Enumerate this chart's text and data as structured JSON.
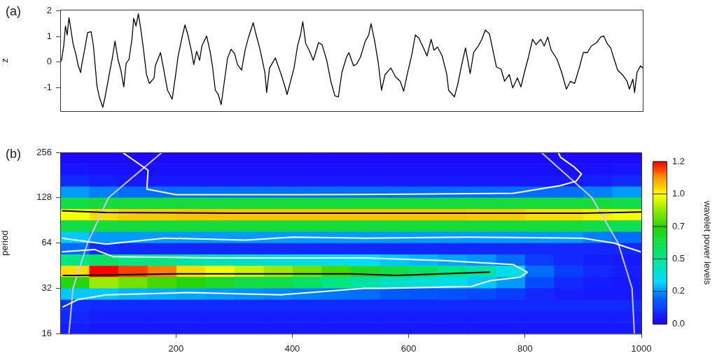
{
  "chart_data": [
    {
      "type": "line",
      "ylabel": "z",
      "annotations": [
        "(a)"
      ],
      "color": "#000000",
      "tick_labels": "y",
      "xlim": [
        1,
        1000
      ],
      "ylim": [
        -1.92,
        2.05
      ],
      "yticks": [
        -1,
        0,
        1,
        2
      ],
      "x": [
        3,
        7,
        10,
        13,
        16,
        19,
        23,
        28,
        32,
        36,
        38,
        43,
        48,
        54,
        58,
        64,
        68,
        74,
        78,
        85,
        90,
        95,
        100,
        105,
        110,
        114,
        119,
        124,
        127,
        131,
        135,
        139,
        144,
        149,
        154,
        162,
        164,
        173,
        178,
        185,
        193,
        199,
        203,
        210,
        215,
        220,
        226,
        230,
        235,
        240,
        244,
        252,
        258,
        262,
        267,
        272,
        277,
        282,
        288,
        294,
        300,
        305,
        312,
        318,
        324,
        332,
        336,
        344,
        352,
        355,
        360,
        370,
        380,
        386,
        390,
        395,
        402,
        408,
        413,
        417,
        422,
        428,
        435,
        444,
        450,
        458,
        465,
        472,
        478,
        484,
        492,
        496,
        504,
        510,
        516,
        524,
        530,
        534,
        540,
        546,
        552,
        558,
        568,
        576,
        584,
        590,
        596,
        604,
        610,
        616,
        624,
        630,
        637,
        642,
        648,
        656,
        664,
        667,
        677,
        683,
        689,
        696,
        704,
        710,
        718,
        724,
        730,
        737,
        743,
        749,
        757,
        763,
        771,
        777,
        785,
        791,
        797,
        804,
        811,
        817,
        825,
        831,
        837,
        843,
        853,
        861,
        869,
        876,
        883,
        891,
        898,
        905,
        912,
        921,
        928,
        933,
        939,
        945,
        951,
        957,
        965,
        973,
        977,
        983,
        986,
        990,
        996,
        1000
      ],
      "values": [
        0.03,
        0.63,
        1.41,
        1.06,
        1.74,
        1.32,
        0.72,
        0.29,
        -0.15,
        -0.41,
        -0.1,
        0.5,
        1.15,
        1.19,
        0.63,
        -0.93,
        -1.36,
        -1.77,
        -1.36,
        -0.49,
        0.11,
        0.82,
        0.11,
        -0.32,
        -0.97,
        -0.06,
        0.11,
        0.89,
        1.71,
        1.41,
        1.89,
        1.32,
        0.46,
        -0.49,
        -0.84,
        -0.62,
        -0.15,
        0.37,
        -0.23,
        -1.1,
        -1.45,
        -0.49,
        0.2,
        0.98,
        1.45,
        1.06,
        0.42,
        -0.1,
        0.42,
        0.07,
        0.63,
        1.02,
        0.42,
        -0.15,
        -1.1,
        -1.27,
        -1.66,
        -0.84,
        0.16,
        0.5,
        0.33,
        -0.1,
        -0.32,
        0.46,
        0.98,
        1.54,
        1.15,
        0.46,
        -0.41,
        -1.19,
        -0.23,
        0.16,
        -0.49,
        -0.93,
        -1.27,
        -0.84,
        -0.23,
        0.63,
        1.06,
        1.58,
        0.72,
        0.46,
        0.07,
        0.76,
        0.68,
        0.07,
        -0.75,
        -1.32,
        -1.36,
        -0.41,
        0.2,
        0.37,
        -0.15,
        -0.06,
        0.2,
        0.81,
        1.06,
        1.5,
        0.85,
        0.03,
        -1.1,
        -0.49,
        -0.23,
        -0.58,
        -0.75,
        -1.14,
        -0.49,
        0.29,
        1.06,
        0.94,
        0.55,
        0.24,
        0.89,
        0.46,
        0.59,
        0.24,
        -0.49,
        -1.1,
        -1.36,
        -0.84,
        -0.15,
        0.55,
        -0.45,
        0.37,
        0.63,
        0.89,
        1.25,
        1.11,
        0.46,
        -0.19,
        -0.28,
        -0.75,
        -0.49,
        -1.01,
        -0.62,
        -0.97,
        -0.41,
        0.2,
        0.89,
        0.68,
        0.89,
        0.63,
        0.98,
        0.46,
        0.11,
        -0.41,
        -1.06,
        -0.75,
        -0.84,
        -0.23,
        0.37,
        0.37,
        0.63,
        0.76,
        0.98,
        1.02,
        0.72,
        0.55,
        0.11,
        -0.32,
        -0.49,
        -0.75,
        -1.06,
        -0.67,
        -1.19,
        -0.41,
        -0.15,
        -0.23
      ]
    },
    {
      "type": "heatmap",
      "ylabel": "period",
      "clabel": "wavelet power levels",
      "annotations": [
        "(b)"
      ],
      "log": "y",
      "xlim": [
        1,
        1000
      ],
      "xticks": [
        200,
        400,
        600,
        800,
        1000
      ],
      "ylim": [
        16,
        256
      ],
      "yticks": [
        16,
        32,
        64,
        128,
        256
      ],
      "clim": [
        0,
        1.2
      ],
      "cticks": [
        {
          "value": 0,
          "label": "0.0"
        },
        {
          "value": 0.24,
          "label": "0.2"
        },
        {
          "value": 0.48,
          "label": "0.5"
        },
        {
          "value": 0.72,
          "label": "0.7"
        },
        {
          "value": 0.96,
          "label": "1.0"
        },
        {
          "value": 1.2,
          "label": "1.2"
        }
      ],
      "cells": [
        [
          0.02,
          0.02,
          0.02,
          0.02,
          0.02,
          0.02,
          0.02,
          0.02,
          0.02,
          0.02,
          0.02,
          0.02,
          0.02,
          0.02,
          0.02,
          0.02,
          0.02,
          0.02,
          0.02,
          0.02
        ],
        [
          0.04,
          0.03,
          0.03,
          0.03,
          0.03,
          0.03,
          0.03,
          0.03,
          0.03,
          0.03,
          0.03,
          0.03,
          0.03,
          0.03,
          0.03,
          0.03,
          0.03,
          0.03,
          0.03,
          0.04
        ],
        [
          0.08,
          0.06,
          0.05,
          0.05,
          0.05,
          0.05,
          0.05,
          0.05,
          0.05,
          0.05,
          0.05,
          0.05,
          0.05,
          0.05,
          0.05,
          0.05,
          0.05,
          0.05,
          0.06,
          0.08
        ],
        [
          0.25,
          0.22,
          0.2,
          0.2,
          0.2,
          0.2,
          0.2,
          0.2,
          0.2,
          0.2,
          0.2,
          0.2,
          0.2,
          0.2,
          0.2,
          0.2,
          0.2,
          0.2,
          0.22,
          0.25
        ],
        [
          0.6,
          0.62,
          0.62,
          0.62,
          0.62,
          0.62,
          0.62,
          0.62,
          0.62,
          0.62,
          0.62,
          0.62,
          0.62,
          0.62,
          0.62,
          0.62,
          0.62,
          0.62,
          0.62,
          0.6
        ],
        [
          0.95,
          1.0,
          1.02,
          1.02,
          1.03,
          1.03,
          1.03,
          1.03,
          1.03,
          1.03,
          1.03,
          1.03,
          1.03,
          1.03,
          1.02,
          1.02,
          1.0,
          1.0,
          0.98,
          0.95
        ],
        [
          0.6,
          0.62,
          0.62,
          0.62,
          0.62,
          0.62,
          0.62,
          0.62,
          0.62,
          0.62,
          0.62,
          0.62,
          0.62,
          0.62,
          0.62,
          0.62,
          0.62,
          0.62,
          0.6,
          0.58
        ],
        [
          0.3,
          0.25,
          0.25,
          0.25,
          0.25,
          0.25,
          0.25,
          0.25,
          0.25,
          0.25,
          0.25,
          0.25,
          0.25,
          0.25,
          0.25,
          0.25,
          0.25,
          0.25,
          0.22,
          0.2
        ],
        [
          0.2,
          0.1,
          0.08,
          0.08,
          0.08,
          0.08,
          0.08,
          0.08,
          0.08,
          0.08,
          0.08,
          0.08,
          0.08,
          0.08,
          0.08,
          0.08,
          0.08,
          0.08,
          0.08,
          0.08
        ],
        [
          0.5,
          0.55,
          0.5,
          0.5,
          0.45,
          0.42,
          0.4,
          0.38,
          0.36,
          0.34,
          0.32,
          0.3,
          0.28,
          0.26,
          0.24,
          0.2,
          0.12,
          0.08,
          0.06,
          0.05
        ],
        [
          1.0,
          1.2,
          1.15,
          1.1,
          1.0,
          0.95,
          0.9,
          0.85,
          0.8,
          0.75,
          0.65,
          0.6,
          0.55,
          0.5,
          0.45,
          0.35,
          0.2,
          0.12,
          0.08,
          0.06
        ],
        [
          0.7,
          0.85,
          0.8,
          0.75,
          0.7,
          0.65,
          0.6,
          0.6,
          0.55,
          0.5,
          0.45,
          0.4,
          0.38,
          0.35,
          0.3,
          0.25,
          0.15,
          0.08,
          0.06,
          0.05
        ],
        [
          0.3,
          0.3,
          0.28,
          0.27,
          0.26,
          0.25,
          0.24,
          0.23,
          0.22,
          0.21,
          0.2,
          0.18,
          0.17,
          0.16,
          0.15,
          0.12,
          0.08,
          0.06,
          0.05,
          0.05
        ],
        [
          0.1,
          0.08,
          0.08,
          0.08,
          0.08,
          0.08,
          0.08,
          0.08,
          0.08,
          0.08,
          0.08,
          0.08,
          0.08,
          0.08,
          0.08,
          0.08,
          0.08,
          0.08,
          0.08,
          0.08
        ],
        [
          0.08,
          0.06,
          0.06,
          0.06,
          0.06,
          0.06,
          0.06,
          0.06,
          0.06,
          0.06,
          0.06,
          0.06,
          0.06,
          0.06,
          0.06,
          0.06,
          0.06,
          0.06,
          0.06,
          0.06
        ],
        [
          0.06,
          0.05,
          0.05,
          0.05,
          0.05,
          0.05,
          0.05,
          0.05,
          0.05,
          0.05,
          0.05,
          0.05,
          0.05,
          0.05,
          0.05,
          0.05,
          0.05,
          0.05,
          0.05,
          0.05
        ]
      ],
      "series": [
        {
          "type": "line",
          "color": "#000000",
          "x": [
            4,
            80,
            300,
            620,
            900,
            1000
          ],
          "values": [
            105,
            102,
            101,
            101,
            101,
            103
          ]
        },
        {
          "type": "line",
          "color": "#000000",
          "x": [
            5,
            30,
            200,
            500,
            580,
            740
          ],
          "values": [
            39,
            39,
            40,
            40,
            39,
            41
          ]
        },
        {
          "type": "line",
          "color": "#ffffff",
          "x": [
            108,
            152,
            150,
            200,
            400,
            600,
            780,
            861,
            888,
            897,
            885,
            861,
            857,
            890
          ],
          "values": [
            256,
            195,
            146,
            134,
            134,
            135,
            137,
            154,
            165,
            184,
            204,
            238,
            256,
            256
          ]
        },
        {
          "type": "line",
          "color": "#ffffff",
          "x": [
            4,
            80,
            180,
            320,
            400,
            524,
            700,
            900,
            953,
            999
          ],
          "values": [
            69,
            63,
            69,
            67,
            70,
            69,
            70,
            69,
            64,
            56
          ]
        },
        {
          "type": "line",
          "color": "#ffffff",
          "x": [
            5,
            32,
            80,
            220,
            380,
            524,
            560,
            708,
            740,
            792,
            804,
            780,
            660,
            524,
            260,
            92,
            60,
            4
          ],
          "values": [
            24,
            27,
            29,
            30,
            29,
            32,
            32,
            33,
            36,
            38,
            41,
            46,
            49,
            51,
            51,
            52,
            58,
            56
          ]
        },
        {
          "type": "line",
          "color": "#c8c8ff",
          "x": [
            16,
            23,
            48,
            84,
            176
          ],
          "values": [
            16,
            32,
            64,
            128,
            256
          ]
        },
        {
          "type": "line",
          "color": "#c8c8ff",
          "x": [
            828,
            915,
            960,
            984,
            988
          ],
          "values": [
            256,
            128,
            64,
            32,
            16
          ]
        }
      ]
    }
  ]
}
